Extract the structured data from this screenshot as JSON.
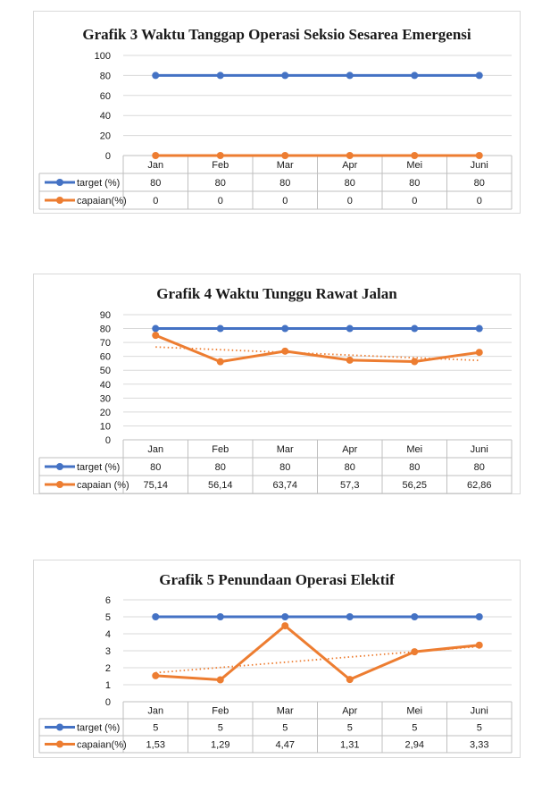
{
  "colors": {
    "target": "#4472c4",
    "capaian": "#ed7d31",
    "grid": "#d9d9d9",
    "border": "#bfbfbf"
  },
  "chart_data": [
    {
      "type": "line",
      "title": "Grafik 3 Waktu Tanggap Operasi Seksio Sesarea Emergensi",
      "categories": [
        "Jan",
        "Feb",
        "Mar",
        "Apr",
        "Mei",
        "Juni"
      ],
      "ylim": [
        0,
        100
      ],
      "yticks": [
        0,
        20,
        40,
        60,
        80,
        100
      ],
      "trendline": false,
      "series": [
        {
          "name": "target (%)",
          "values": [
            80,
            80,
            80,
            80,
            80,
            80
          ],
          "labels": [
            "80",
            "80",
            "80",
            "80",
            "80",
            "80"
          ]
        },
        {
          "name": "capaian(%)",
          "values": [
            0,
            0,
            0,
            0,
            0,
            0
          ],
          "labels": [
            "0",
            "0",
            "0",
            "0",
            "0",
            "0"
          ]
        }
      ]
    },
    {
      "type": "line",
      "title": "Grafik 4 Waktu Tunggu Rawat Jalan",
      "categories": [
        "Jan",
        "Feb",
        "Mar",
        "Apr",
        "Mei",
        "Juni"
      ],
      "ylim": [
        0,
        90
      ],
      "yticks": [
        0,
        10,
        20,
        30,
        40,
        50,
        60,
        70,
        80,
        90
      ],
      "trendline": true,
      "series": [
        {
          "name": "target (%)",
          "values": [
            80,
            80,
            80,
            80,
            80,
            80
          ],
          "labels": [
            "80",
            "80",
            "80",
            "80",
            "80",
            "80"
          ]
        },
        {
          "name": "capaian (%)",
          "values": [
            75.14,
            56.14,
            63.74,
            57.3,
            56.25,
            62.86
          ],
          "labels": [
            "75,14",
            "56,14",
            "63,74",
            "57,3",
            "56,25",
            "62,86"
          ]
        }
      ]
    },
    {
      "type": "line",
      "title": "Grafik 5 Penundaan Operasi Elektif",
      "categories": [
        "Jan",
        "Feb",
        "Mar",
        "Apr",
        "Mei",
        "Juni"
      ],
      "ylim": [
        0,
        6
      ],
      "yticks": [
        0,
        1,
        2,
        3,
        4,
        5,
        6
      ],
      "trendline": true,
      "series": [
        {
          "name": "target (%)",
          "values": [
            5,
            5,
            5,
            5,
            5,
            5
          ],
          "labels": [
            "5",
            "5",
            "5",
            "5",
            "5",
            "5"
          ]
        },
        {
          "name": "capaian(%)",
          "values": [
            1.53,
            1.29,
            4.47,
            1.31,
            2.94,
            3.33
          ],
          "labels": [
            "1,53",
            "1,29",
            "4,47",
            "1,31",
            "2,94",
            "3,33"
          ]
        }
      ]
    }
  ]
}
